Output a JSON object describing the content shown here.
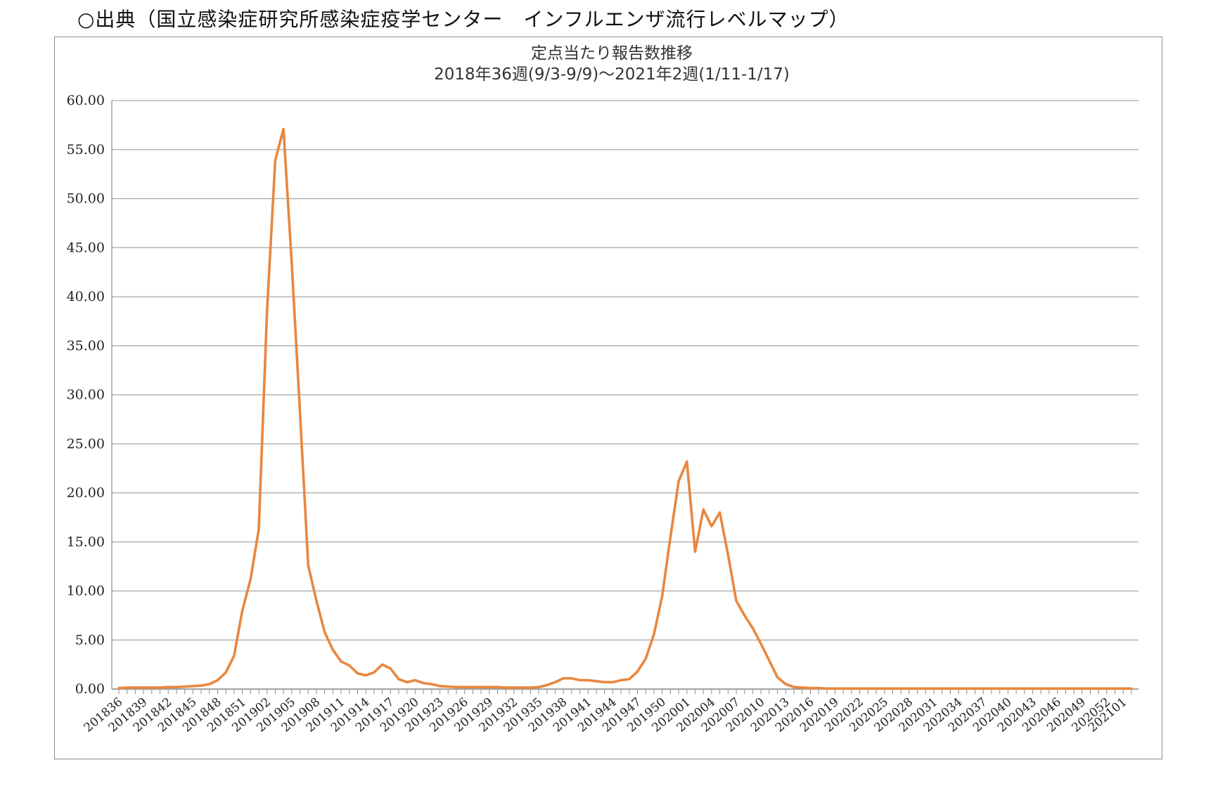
{
  "caption": "○出典（国立感染症研究所感染症疫学センター　インフルエンザ流行レベルマップ）",
  "chart_data": {
    "type": "line",
    "title": "定点当たり報告数推移",
    "subtitle": "2018年36週(9/3-9/9)～2021年2週(1/11-1/17)",
    "xlabel": "",
    "ylabel": "",
    "ylim": [
      0,
      60
    ],
    "yticks": [
      "0.00",
      "5.00",
      "10.00",
      "15.00",
      "20.00",
      "25.00",
      "30.00",
      "35.00",
      "40.00",
      "45.00",
      "50.00",
      "55.00",
      "60.00"
    ],
    "grid": true,
    "legend": "none",
    "line_color": "#e8873f",
    "x_tick_labels": [
      "201836",
      "201839",
      "201842",
      "201845",
      "201848",
      "201851",
      "201902",
      "201905",
      "201908",
      "201911",
      "201914",
      "201917",
      "201920",
      "201923",
      "201926",
      "201929",
      "201932",
      "201935",
      "201938",
      "201941",
      "201944",
      "201947",
      "201950",
      "202001",
      "202004",
      "202007",
      "202010",
      "202013",
      "202016",
      "202019",
      "202022",
      "202025",
      "202028",
      "202031",
      "202034",
      "202037",
      "202040",
      "202043",
      "202046",
      "202049",
      "202052",
      "202101"
    ],
    "series": [
      {
        "x": [
          "201836",
          "201837",
          "201838",
          "201839",
          "201840",
          "201841",
          "201842",
          "201843",
          "201844",
          "201845",
          "201846",
          "201847",
          "201848",
          "201849",
          "201850",
          "201851",
          "201852",
          "201901",
          "201902",
          "201903",
          "201904",
          "201905",
          "201906",
          "201907",
          "201908",
          "201909",
          "201910",
          "201911",
          "201912",
          "201913",
          "201914",
          "201915",
          "201916",
          "201917",
          "201918",
          "201919",
          "201920",
          "201921",
          "201922",
          "201923",
          "201924",
          "201925",
          "201926",
          "201927",
          "201928",
          "201929",
          "201930",
          "201931",
          "201932",
          "201933",
          "201934",
          "201935",
          "201936",
          "201937",
          "201938",
          "201939",
          "201940",
          "201941",
          "201942",
          "201943",
          "201944",
          "201945",
          "201946",
          "201947",
          "201948",
          "201949",
          "201950",
          "201951",
          "201952",
          "202001",
          "202002",
          "202003",
          "202004",
          "202005",
          "202006",
          "202007",
          "202008",
          "202009",
          "202010",
          "202011",
          "202012",
          "202013",
          "202014",
          "202015",
          "202016",
          "202017",
          "202018",
          "202019",
          "202020",
          "202021",
          "202022",
          "202023",
          "202024",
          "202025",
          "202026",
          "202027",
          "202028",
          "202029",
          "202030",
          "202031",
          "202032",
          "202033",
          "202034",
          "202035",
          "202036",
          "202037",
          "202038",
          "202039",
          "202040",
          "202041",
          "202042",
          "202043",
          "202044",
          "202045",
          "202046",
          "202047",
          "202048",
          "202049",
          "202050",
          "202051",
          "202052",
          "202053",
          "202101",
          "202102"
        ],
        "values": [
          0.1,
          0.15,
          0.15,
          0.15,
          0.15,
          0.15,
          0.2,
          0.2,
          0.25,
          0.3,
          0.35,
          0.5,
          0.9,
          1.7,
          3.4,
          8.0,
          11.2,
          16.3,
          38.5,
          53.9,
          57.1,
          43.4,
          28.2,
          12.6,
          9.0,
          5.8,
          4.0,
          2.8,
          2.4,
          1.6,
          1.4,
          1.7,
          2.5,
          2.1,
          1.0,
          0.7,
          0.9,
          0.6,
          0.5,
          0.3,
          0.25,
          0.2,
          0.2,
          0.2,
          0.2,
          0.2,
          0.2,
          0.15,
          0.15,
          0.15,
          0.15,
          0.2,
          0.4,
          0.7,
          1.1,
          1.1,
          0.9,
          0.9,
          0.8,
          0.7,
          0.7,
          0.9,
          1.0,
          1.8,
          3.1,
          5.6,
          9.5,
          15.5,
          21.2,
          23.2,
          14.0,
          18.3,
          16.6,
          18.0,
          13.7,
          9.0,
          7.5,
          6.2,
          4.6,
          2.9,
          1.2,
          0.5,
          0.2,
          0.15,
          0.1,
          0.1,
          0.05,
          0.05,
          0.05,
          0.05,
          0.05,
          0.05,
          0.05,
          0.05,
          0.05,
          0.05,
          0.05,
          0.05,
          0.05,
          0.05,
          0.05,
          0.05,
          0.05,
          0.05,
          0.05,
          0.05,
          0.05,
          0.05,
          0.05,
          0.05,
          0.05,
          0.05,
          0.05,
          0.05,
          0.05,
          0.05,
          0.05,
          0.05,
          0.05,
          0.05,
          0.05,
          0.05,
          0.05,
          0.05
        ]
      }
    ]
  }
}
